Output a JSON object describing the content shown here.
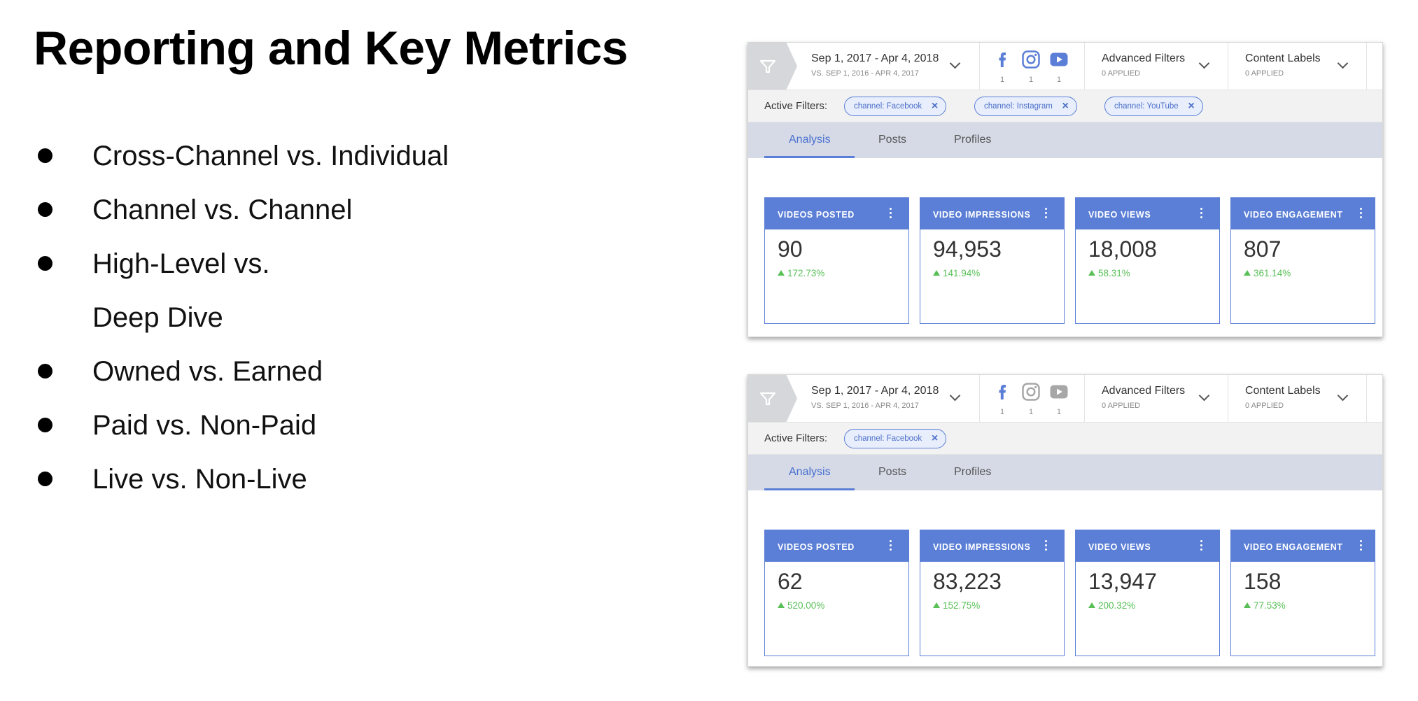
{
  "slide": {
    "title": "Reporting and Key Metrics",
    "bullets": [
      "Cross-Channel vs. Individual",
      "Channel vs. Channel",
      "High-Level vs.",
      "Deep Dive",
      "Owned vs. Earned",
      "Paid vs. Non-Paid",
      "Live vs. Non-Live"
    ]
  },
  "panels": [
    {
      "date_range": "Sep 1, 2017 - Apr 4, 2018",
      "compare_range": "VS. SEP 1, 2016 - APR 4, 2017",
      "channels": [
        {
          "icon": "facebook-icon",
          "count": "1",
          "active": true
        },
        {
          "icon": "instagram-icon",
          "count": "1",
          "active": true
        },
        {
          "icon": "youtube-icon",
          "count": "1",
          "active": true
        }
      ],
      "advanced_filters": {
        "label": "Advanced Filters",
        "sub": "0 APPLIED"
      },
      "content_labels": {
        "label": "Content Labels",
        "sub": "0 APPLIED"
      },
      "active_filters_label": "Active Filters:",
      "chips": [
        "channel: Facebook",
        "channel: Instagram",
        "channel: YouTube"
      ],
      "tabs": [
        "Analysis",
        "Posts",
        "Profiles"
      ],
      "active_tab": "Analysis",
      "cards": [
        {
          "title": "VIDEOS POSTED",
          "value": "90",
          "delta": "172.73%"
        },
        {
          "title": "VIDEO IMPRESSIONS",
          "value": "94,953",
          "delta": "141.94%"
        },
        {
          "title": "VIDEO VIEWS",
          "value": "18,008",
          "delta": "58.31%"
        },
        {
          "title": "VIDEO ENGAGEMENT",
          "value": "807",
          "delta": "361.14%"
        }
      ]
    },
    {
      "date_range": "Sep 1, 2017 - Apr 4, 2018",
      "compare_range": "VS. SEP 1, 2016 - APR 4, 2017",
      "channels": [
        {
          "icon": "facebook-icon",
          "count": "1",
          "active": true
        },
        {
          "icon": "instagram-icon",
          "count": "1",
          "active": false
        },
        {
          "icon": "youtube-icon",
          "count": "1",
          "active": false
        }
      ],
      "advanced_filters": {
        "label": "Advanced Filters",
        "sub": "0 APPLIED"
      },
      "content_labels": {
        "label": "Content Labels",
        "sub": "0 APPLIED"
      },
      "active_filters_label": "Active Filters:",
      "chips": [
        "channel: Facebook"
      ],
      "tabs": [
        "Analysis",
        "Posts",
        "Profiles"
      ],
      "active_tab": "Analysis",
      "cards": [
        {
          "title": "VIDEOS POSTED",
          "value": "62",
          "delta": "520.00%"
        },
        {
          "title": "VIDEO IMPRESSIONS",
          "value": "83,223",
          "delta": "152.75%"
        },
        {
          "title": "VIDEO VIEWS",
          "value": "13,947",
          "delta": "200.32%"
        },
        {
          "title": "VIDEO ENGAGEMENT",
          "value": "158",
          "delta": "77.53%"
        }
      ]
    }
  ],
  "colors": {
    "accent": "#5b7fd6",
    "positive": "#59c058",
    "inactive_icon": "#a7a7a7"
  }
}
